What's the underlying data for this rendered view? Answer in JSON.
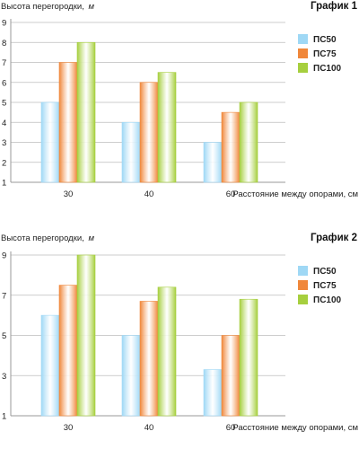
{
  "chart_data": [
    {
      "type": "bar",
      "title": "График 1",
      "ylabel": "Высота перегородки,",
      "ylabel_unit": "м",
      "xlabel": "Расстояние между опорами, см",
      "categories": [
        "30",
        "40",
        "60"
      ],
      "yticks": [
        "1",
        "2",
        "3",
        "4",
        "5",
        "6",
        "7",
        "8",
        "9"
      ],
      "ylim": [
        1,
        9
      ],
      "grid": true,
      "legend_position": "right",
      "series": [
        {
          "name": "ПС50",
          "color": "#9fd8f5",
          "values": [
            5,
            4,
            3
          ]
        },
        {
          "name": "ПС75",
          "color": "#f0873a",
          "values": [
            7,
            6,
            4.5
          ]
        },
        {
          "name": "ПС100",
          "color": "#a6cf3e",
          "values": [
            8,
            6.5,
            5
          ]
        }
      ]
    },
    {
      "type": "bar",
      "title": "График 2",
      "ylabel": "Высота перегородки,",
      "ylabel_unit": "м",
      "xlabel": "Расстояние между опорами, см",
      "categories": [
        "30",
        "40",
        "60"
      ],
      "yticks": [
        "1",
        "3",
        "5",
        "7",
        "9"
      ],
      "ylim": [
        1,
        9
      ],
      "grid": true,
      "legend_position": "right",
      "series": [
        {
          "name": "ПС50",
          "color": "#9fd8f5",
          "values": [
            6,
            5,
            3.3
          ]
        },
        {
          "name": "ПС75",
          "color": "#f0873a",
          "values": [
            7.5,
            6.7,
            5
          ]
        },
        {
          "name": "ПС100",
          "color": "#a6cf3e",
          "values": [
            9,
            7.4,
            6.8
          ]
        }
      ]
    }
  ]
}
